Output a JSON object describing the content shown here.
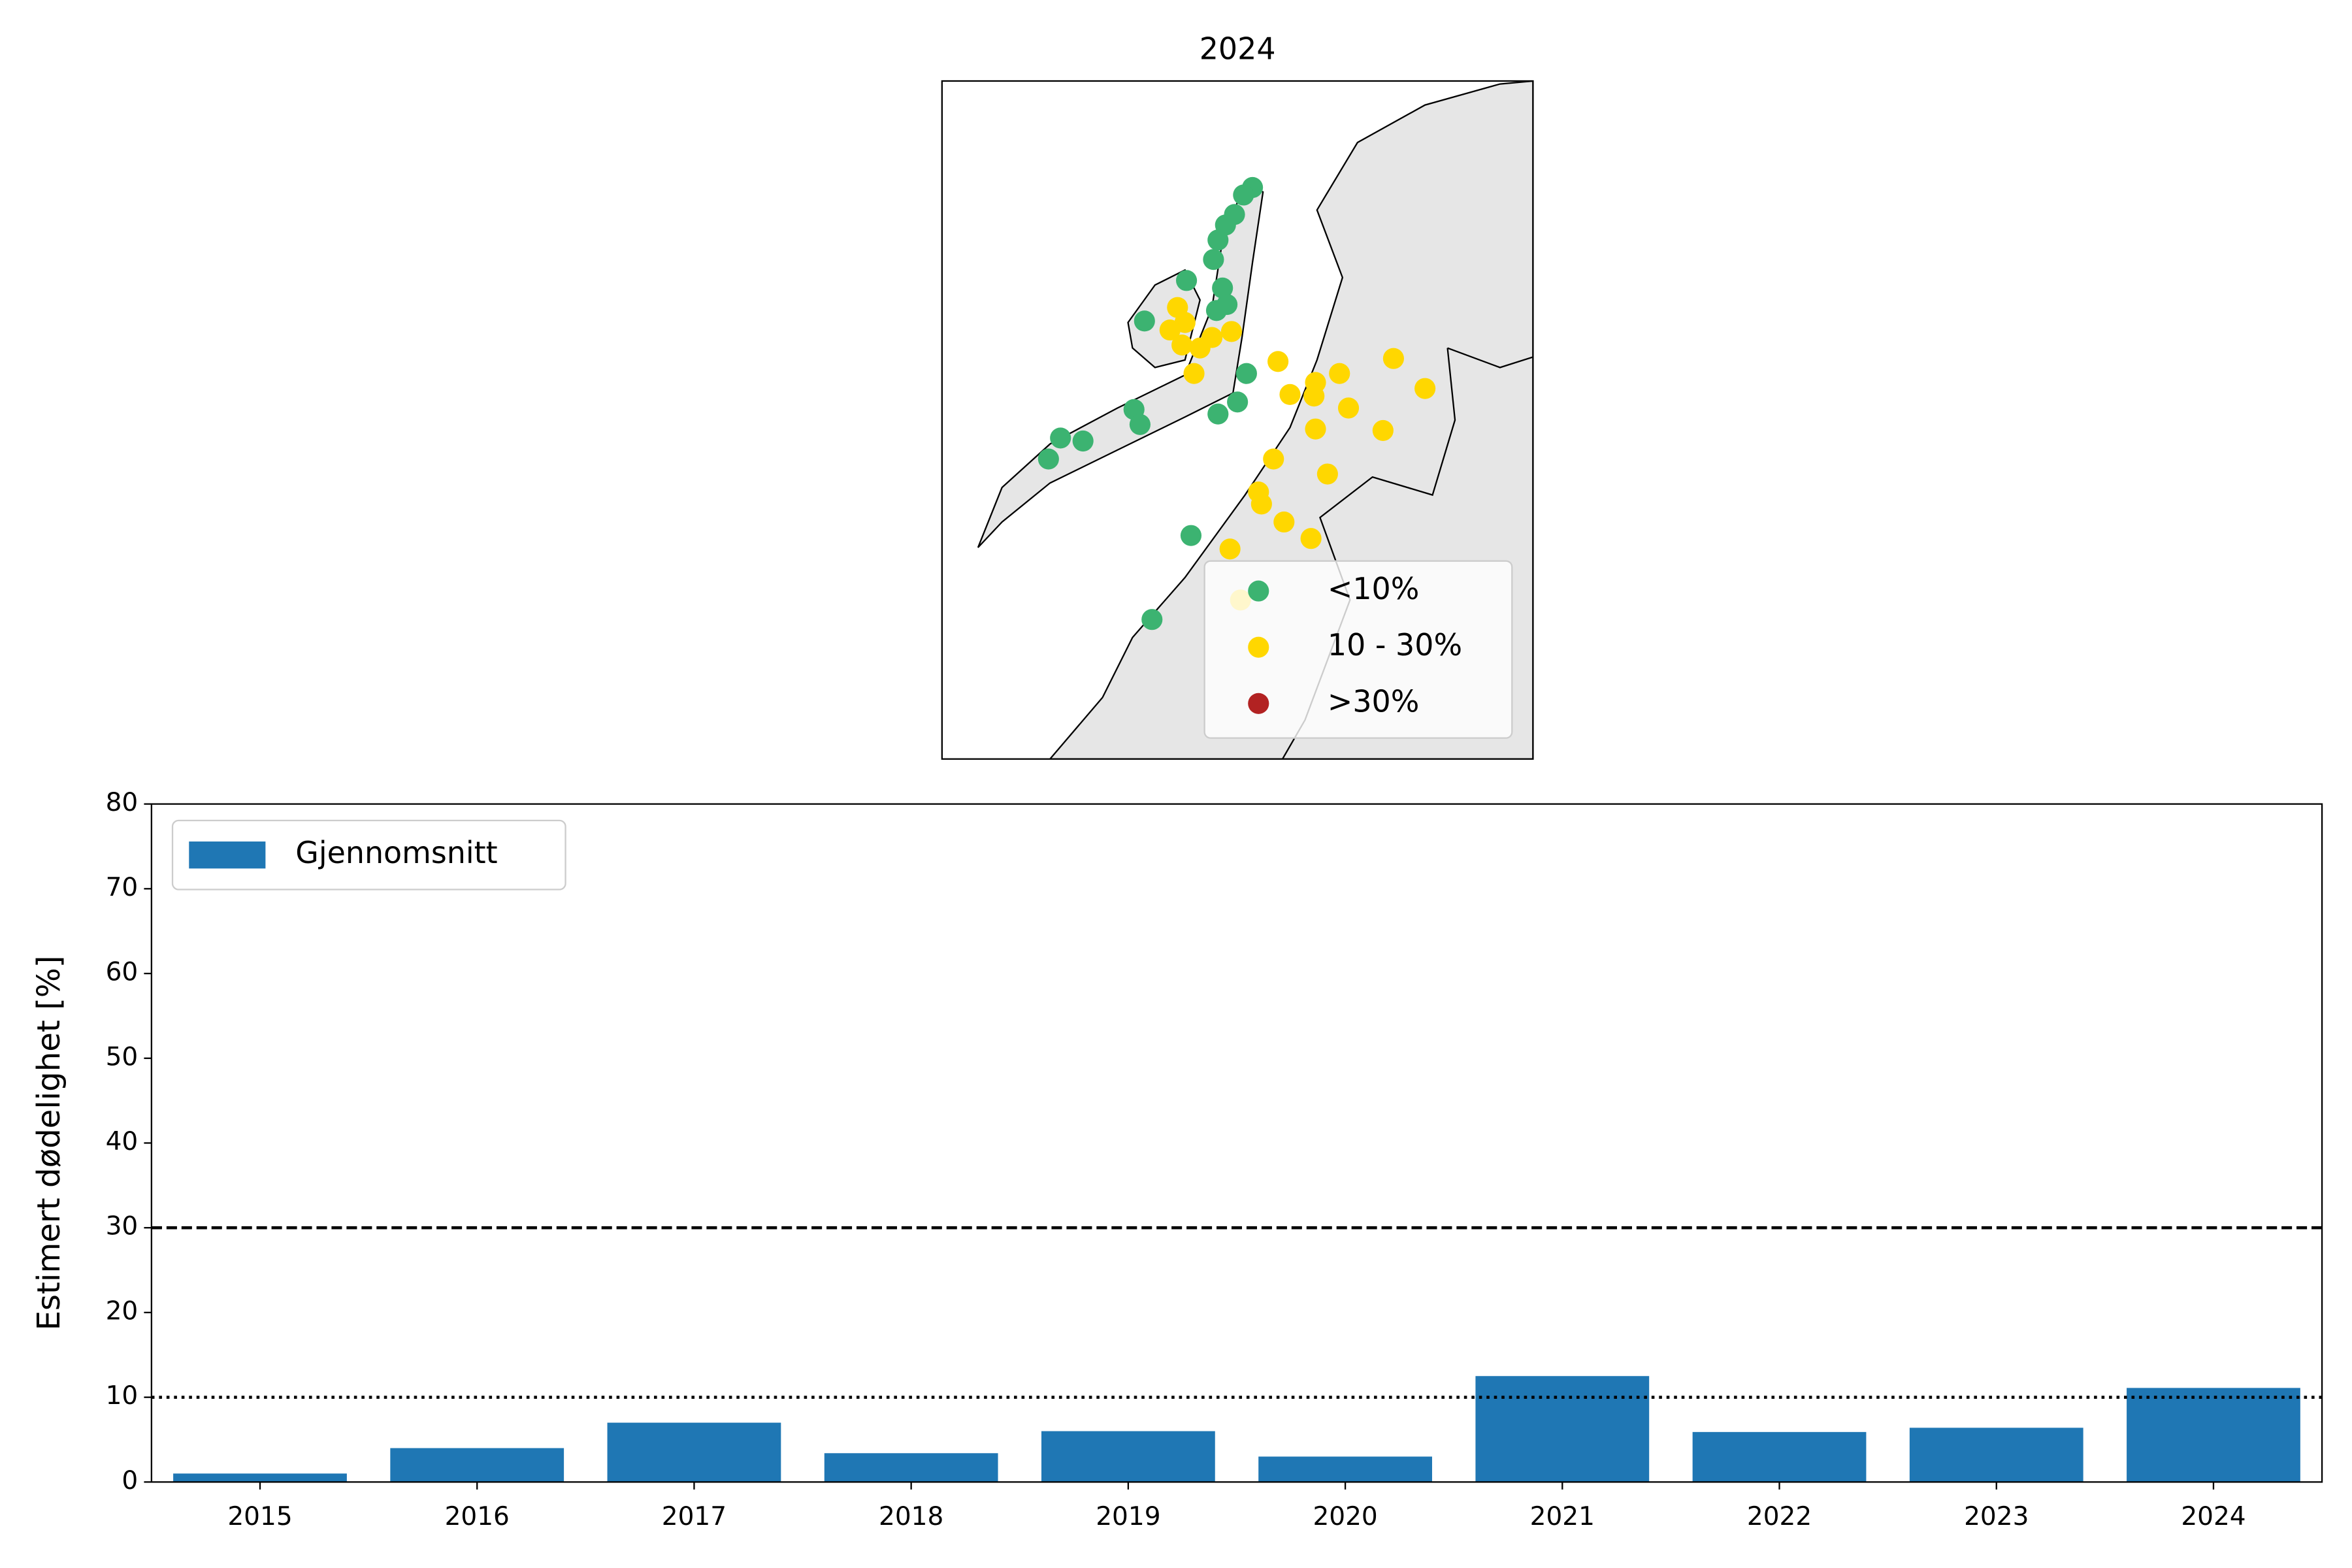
{
  "chart_data": [
    {
      "type": "map",
      "title": "2024",
      "legend": [
        {
          "label": "<10%",
          "color": "#3cb371"
        },
        {
          "label": "10 - 30%",
          "color": "#ffd700"
        },
        {
          "label": ">30%",
          "color": "#b22222"
        }
      ],
      "legend_position": "lower right"
    },
    {
      "type": "bar",
      "ylabel": "Estimert dødelighet [%]",
      "categories": [
        "2015",
        "2016",
        "2017",
        "2018",
        "2019",
        "2020",
        "2021",
        "2022",
        "2023",
        "2024"
      ],
      "series": [
        {
          "name": "Gjennomsnitt",
          "color": "#1f77b4",
          "values": [
            1.0,
            4.0,
            7.0,
            3.4,
            6.0,
            3.0,
            12.5,
            5.9,
            6.4,
            11.1
          ]
        }
      ],
      "ylim": [
        0,
        80
      ],
      "yticks": [
        0,
        10,
        20,
        30,
        40,
        50,
        60,
        70,
        80
      ],
      "hlines": [
        {
          "value": 30,
          "style": "dashed"
        },
        {
          "value": 10,
          "style": "dotted"
        }
      ],
      "legend_position": "upper left"
    }
  ]
}
